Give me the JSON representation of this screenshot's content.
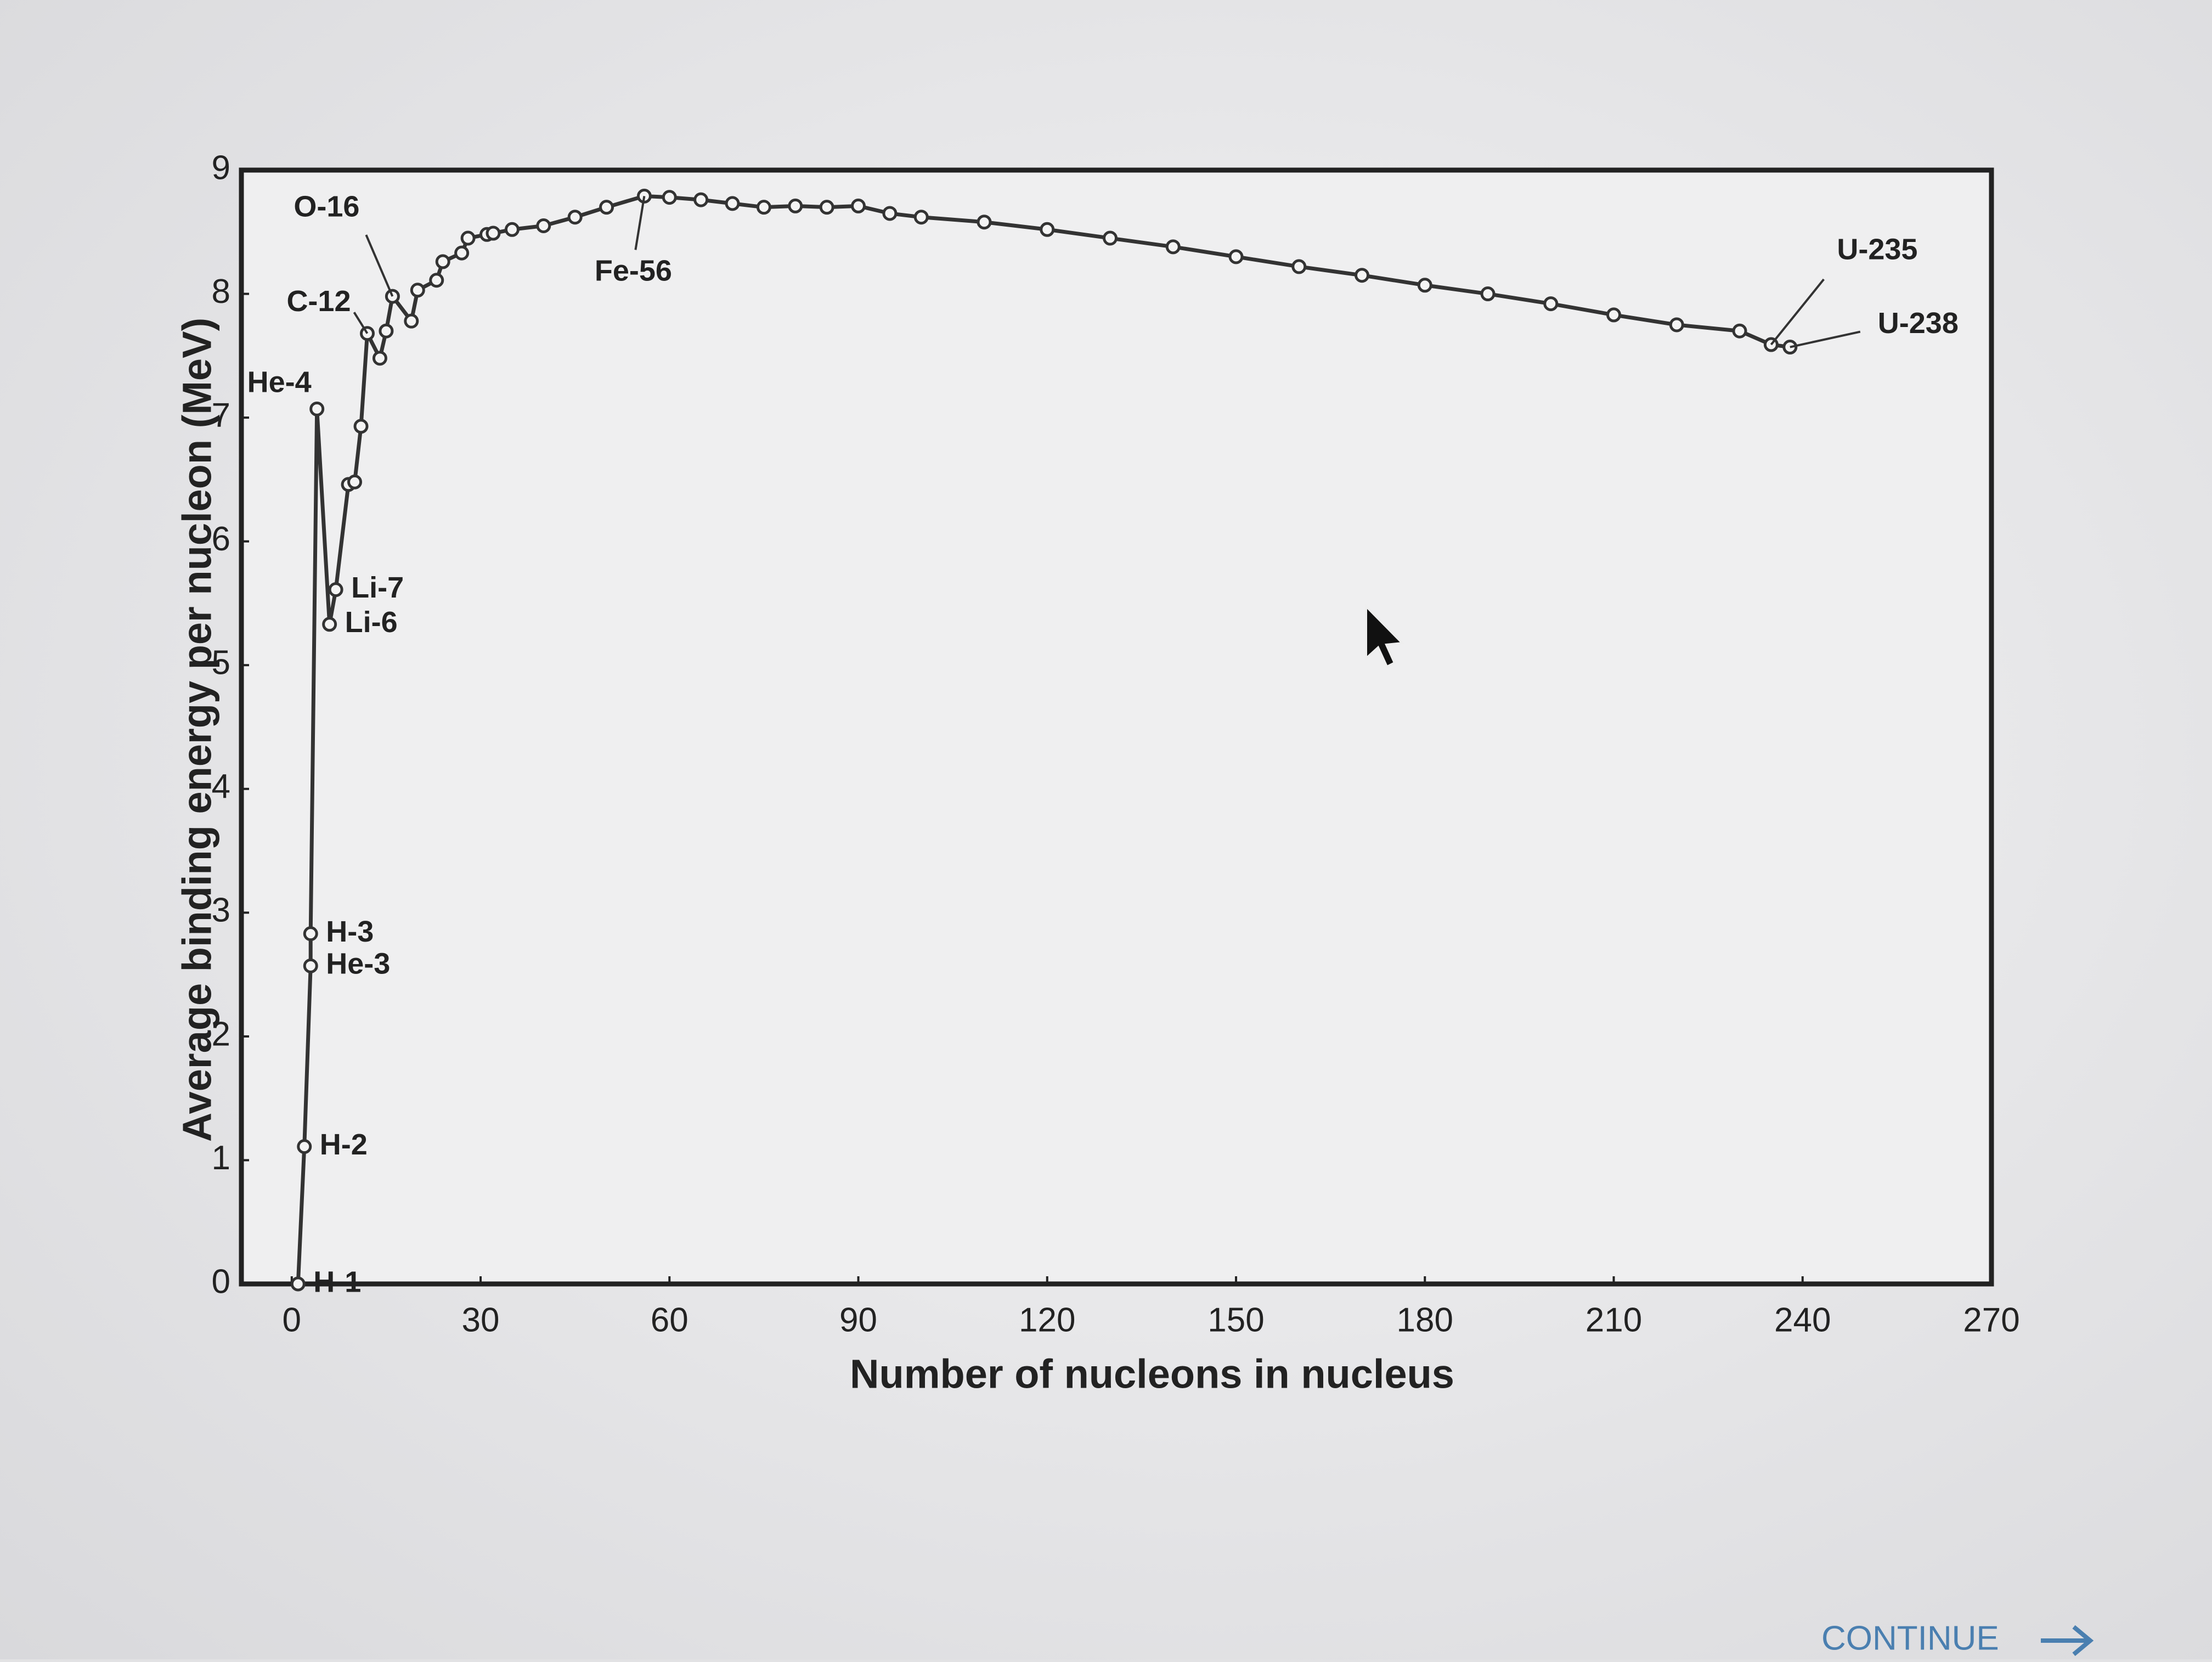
{
  "chart_data": {
    "type": "line",
    "x_label": "Number of nucleons in nucleus",
    "y_label": "Average binding energy per nucleon (MeV)",
    "xlim": [
      -8,
      270
    ],
    "xticks": [
      0,
      30,
      60,
      90,
      120,
      150,
      180,
      210,
      240,
      270
    ],
    "ylim": [
      0,
      9
    ],
    "yticks": [
      0,
      1,
      2,
      3,
      4,
      5,
      6,
      7,
      8,
      9
    ],
    "series": [
      {
        "color": "#333333",
        "x": [
          1,
          2,
          3,
          3,
          4,
          6,
          7,
          9,
          10,
          11,
          12,
          14,
          15,
          16,
          19,
          20,
          23,
          24,
          27,
          28,
          31,
          32,
          35,
          40,
          45,
          50,
          56,
          60,
          65,
          70,
          75,
          80,
          85,
          90,
          95,
          100,
          110,
          120,
          130,
          140,
          150,
          160,
          170,
          180,
          190,
          200,
          210,
          220,
          230,
          235,
          238
        ],
        "values": [
          0,
          1.11,
          2.57,
          2.83,
          7.07,
          5.33,
          5.61,
          6.46,
          6.48,
          6.93,
          7.68,
          7.48,
          7.7,
          7.98,
          7.78,
          8.03,
          8.11,
          8.26,
          8.33,
          8.45,
          8.48,
          8.49,
          8.52,
          8.55,
          8.62,
          8.7,
          8.79,
          8.78,
          8.76,
          8.73,
          8.7,
          8.71,
          8.7,
          8.71,
          8.65,
          8.62,
          8.58,
          8.52,
          8.45,
          8.38,
          8.3,
          8.22,
          8.15,
          8.07,
          8.0,
          7.92,
          7.83,
          7.75,
          7.7,
          7.59,
          7.57
        ],
        "point_labels": [
          "H-1",
          "H-2",
          "He-3",
          "H-3",
          "He-4",
          "Li-6",
          "Li-7",
          null,
          null,
          null,
          "C-12",
          null,
          null,
          "O-16",
          null,
          null,
          null,
          null,
          null,
          null,
          null,
          null,
          null,
          null,
          null,
          null,
          "Fe-56",
          null,
          null,
          null,
          null,
          null,
          null,
          null,
          null,
          null,
          null,
          null,
          null,
          null,
          null,
          null,
          null,
          null,
          null,
          null,
          null,
          null,
          null,
          "U-235",
          "U-238"
        ]
      }
    ]
  },
  "continue_button": "CONTINUE"
}
